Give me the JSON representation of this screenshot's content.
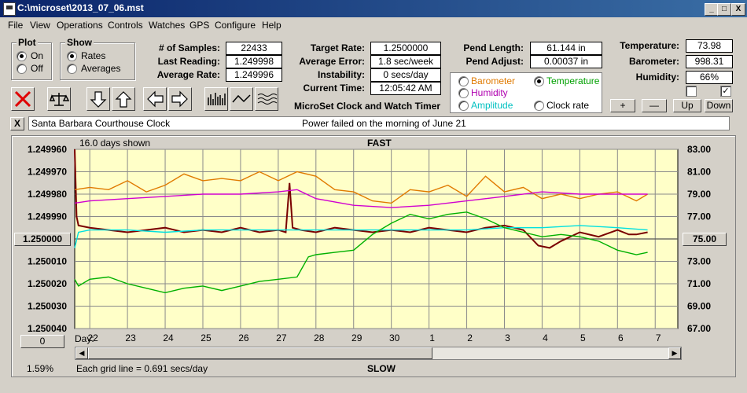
{
  "window": {
    "title": "C:\\microset\\2013_07_06.mst",
    "min": "_",
    "max": "□",
    "close": "X"
  },
  "menu": [
    "File",
    "View",
    "Operations",
    "Controls",
    "Watches",
    "GPS",
    "Configure",
    "Help"
  ],
  "plot_group": {
    "title": "Plot",
    "on": "On",
    "off": "Off",
    "selected": "On"
  },
  "show_group": {
    "title": "Show",
    "rates": "Rates",
    "averages": "Averages",
    "selected": "Rates"
  },
  "stats": {
    "samples_label": "# of Samples:",
    "samples": "22433",
    "last_reading_label": "Last Reading:",
    "last_reading": "1.249998",
    "average_rate_label": "Average Rate:",
    "average_rate": "1.249996",
    "target_rate_label": "Target Rate:",
    "target_rate": "1.2500000",
    "average_error_label": "Average Error:",
    "average_error": "1.8 sec/week",
    "instability_label": "Instability:",
    "instability": "0 secs/day",
    "current_time_label": "Current Time:",
    "current_time": "12:05:42 AM",
    "pend_length_label": "Pend Length:",
    "pend_length": "61.144 in",
    "pend_adjust_label": "Pend Adjust:",
    "pend_adjust": "0.00037 in"
  },
  "env": {
    "temperature_label": "Temperature:",
    "temperature": "73.98",
    "barometer_label": "Barometer:",
    "barometer": "998.31",
    "humidity_label": "Humidity:",
    "humidity": "66%",
    "check1": "",
    "check2": "✓"
  },
  "series_select": {
    "barometer": "Barometer",
    "temperature": "Temperature",
    "humidity": "Humidity",
    "amplitude": "Amplitude",
    "clock_rate": "Clock rate",
    "selected": "Temperature",
    "colors": {
      "barometer": "#e07a00",
      "temperature": "#00a000",
      "humidity": "#b000b0",
      "amplitude": "#00c0c0",
      "clock_rate": "#000000"
    }
  },
  "scale_buttons": {
    "plus": "+",
    "minus": "—",
    "up": "Up",
    "down": "Down"
  },
  "app_caption": "MicroSet Clock and Watch Timer",
  "clock_name": "Santa Barbara Courthouse Clock",
  "note": "Power failed on the morning of June 21",
  "close_note": "X",
  "chart_header": {
    "days_shown": "16.0 days shown",
    "fast": "FAST",
    "slow": "SLOW",
    "grid_note": "Each grid line = 0.691 secs/day",
    "percent": "1.59%",
    "day_label": "Day:",
    "left_center_button": "1.250000",
    "right_center_button": "75.00",
    "bottom_left_button": "0"
  },
  "chart_data": {
    "type": "line",
    "x_categories": [
      "22",
      "23",
      "24",
      "25",
      "26",
      "27",
      "28",
      "29",
      "30",
      "1",
      "2",
      "3",
      "4",
      "5",
      "6",
      "7"
    ],
    "y_left_ticks": [
      "1.249960",
      "1.249970",
      "1.249980",
      "1.249990",
      "1.250000",
      "1.250010",
      "1.250020",
      "1.250030",
      "1.250040"
    ],
    "y_right_ticks": [
      "83.00",
      "81.00",
      "79.00",
      "77.00",
      "75.00",
      "73.00",
      "71.00",
      "69.00",
      "67.00"
    ],
    "y_left_range": [
      1.24996,
      1.25004
    ],
    "y_right_range": [
      67,
      83
    ],
    "grid": true,
    "background": "#ffffc8",
    "series": [
      {
        "key": "clock_rate",
        "color": "#7a0000",
        "axis": "left",
        "values": [
          [
            21.6,
            1.24996
          ],
          [
            21.65,
            1.24999
          ],
          [
            21.7,
            1.249994
          ],
          [
            22,
            1.249995
          ],
          [
            22.5,
            1.249996
          ],
          [
            23,
            1.249997
          ],
          [
            23.5,
            1.249996
          ],
          [
            24,
            1.249995
          ],
          [
            24.5,
            1.249997
          ],
          [
            25,
            1.249996
          ],
          [
            25.5,
            1.249997
          ],
          [
            26,
            1.249995
          ],
          [
            26.5,
            1.249997
          ],
          [
            27,
            1.249996
          ],
          [
            27.2,
            1.249997
          ],
          [
            27.3,
            1.249975
          ],
          [
            27.38,
            1.249995
          ],
          [
            27.6,
            1.249996
          ],
          [
            28,
            1.249997
          ],
          [
            28.5,
            1.249995
          ],
          [
            29,
            1.249996
          ],
          [
            29.5,
            1.249997
          ],
          [
            30,
            1.249996
          ],
          [
            30.5,
            1.249997
          ],
          [
            31,
            1.249995
          ],
          [
            31.5,
            1.249996
          ],
          [
            32,
            1.249997
          ],
          [
            32.5,
            1.249995
          ],
          [
            33,
            1.249994
          ],
          [
            33.5,
            1.249996
          ],
          [
            33.9,
            1.250003
          ],
          [
            34.2,
            1.250004
          ],
          [
            34.5,
            1.250001
          ],
          [
            35,
            1.249997
          ],
          [
            35.5,
            1.249999
          ],
          [
            36,
            1.249996
          ],
          [
            36.3,
            1.249998
          ],
          [
            36.5,
            1.249998
          ],
          [
            36.8,
            1.249997
          ]
        ]
      },
      {
        "key": "barometer",
        "color": "#e07a00",
        "axis": "left",
        "values": [
          [
            21.6,
            1.249978
          ],
          [
            22,
            1.249977
          ],
          [
            22.5,
            1.249978
          ],
          [
            23,
            1.249974
          ],
          [
            23.5,
            1.249979
          ],
          [
            24,
            1.249976
          ],
          [
            24.5,
            1.249971
          ],
          [
            25,
            1.249974
          ],
          [
            25.5,
            1.249973
          ],
          [
            26,
            1.249974
          ],
          [
            26.5,
            1.24997
          ],
          [
            27,
            1.249974
          ],
          [
            27.5,
            1.24997
          ],
          [
            28,
            1.249972
          ],
          [
            28.5,
            1.249978
          ],
          [
            29,
            1.249979
          ],
          [
            29.5,
            1.249983
          ],
          [
            30,
            1.249984
          ],
          [
            30.5,
            1.249978
          ],
          [
            31,
            1.249979
          ],
          [
            31.5,
            1.249976
          ],
          [
            32,
            1.249981
          ],
          [
            32.5,
            1.249972
          ],
          [
            33,
            1.249979
          ],
          [
            33.5,
            1.249977
          ],
          [
            34,
            1.249982
          ],
          [
            34.5,
            1.24998
          ],
          [
            35,
            1.249982
          ],
          [
            35.5,
            1.24998
          ],
          [
            36,
            1.249979
          ],
          [
            36.5,
            1.249983
          ],
          [
            36.8,
            1.24998
          ]
        ]
      },
      {
        "key": "humidity",
        "color": "#d000d0",
        "axis": "left",
        "values": [
          [
            21.6,
            1.249984
          ],
          [
            22,
            1.249983
          ],
          [
            23,
            1.249982
          ],
          [
            24,
            1.249981
          ],
          [
            25,
            1.24998
          ],
          [
            26,
            1.24998
          ],
          [
            27,
            1.249979
          ],
          [
            27.5,
            1.249978
          ],
          [
            28,
            1.249982
          ],
          [
            29,
            1.249985
          ],
          [
            30,
            1.249986
          ],
          [
            31,
            1.249985
          ],
          [
            32,
            1.249983
          ],
          [
            33,
            1.249981
          ],
          [
            34,
            1.249979
          ],
          [
            35,
            1.24998
          ],
          [
            36,
            1.24998
          ],
          [
            36.8,
            1.24998
          ]
        ]
      },
      {
        "key": "amplitude",
        "color": "#00e0e0",
        "axis": "left",
        "values": [
          [
            21.6,
            1.250004
          ],
          [
            21.7,
            1.249997
          ],
          [
            22,
            1.249996
          ],
          [
            23,
            1.249996
          ],
          [
            24,
            1.249997
          ],
          [
            25,
            1.249996
          ],
          [
            26,
            1.249996
          ],
          [
            27,
            1.249996
          ],
          [
            28,
            1.249996
          ],
          [
            29,
            1.249996
          ],
          [
            30,
            1.249996
          ],
          [
            31,
            1.249996
          ],
          [
            32,
            1.249996
          ],
          [
            33,
            1.249995
          ],
          [
            34,
            1.249995
          ],
          [
            35,
            1.249994
          ],
          [
            36,
            1.249995
          ],
          [
            36.8,
            1.249996
          ]
        ]
      },
      {
        "key": "temperature",
        "color": "#00b000",
        "axis": "left",
        "values": [
          [
            21.6,
            1.250018
          ],
          [
            21.7,
            1.250021
          ],
          [
            22,
            1.250018
          ],
          [
            22.5,
            1.250017
          ],
          [
            23,
            1.25002
          ],
          [
            23.5,
            1.250022
          ],
          [
            24,
            1.250024
          ],
          [
            24.5,
            1.250022
          ],
          [
            25,
            1.250021
          ],
          [
            25.5,
            1.250023
          ],
          [
            26,
            1.250021
          ],
          [
            26.5,
            1.250019
          ],
          [
            27,
            1.250018
          ],
          [
            27.5,
            1.250017
          ],
          [
            27.8,
            1.250008
          ],
          [
            28,
            1.250007
          ],
          [
            28.5,
            1.250006
          ],
          [
            29,
            1.250005
          ],
          [
            29.5,
            1.249998
          ],
          [
            30,
            1.249993
          ],
          [
            30.5,
            1.249989
          ],
          [
            31,
            1.249991
          ],
          [
            31.5,
            1.249989
          ],
          [
            32,
            1.249988
          ],
          [
            32.5,
            1.249991
          ],
          [
            33,
            1.249995
          ],
          [
            33.5,
            1.249997
          ],
          [
            34,
            1.249999
          ],
          [
            34.5,
            1.249998
          ],
          [
            35,
            1.249999
          ],
          [
            35.5,
            1.250001
          ],
          [
            36,
            1.250005
          ],
          [
            36.5,
            1.250007
          ],
          [
            36.8,
            1.250006
          ]
        ]
      }
    ]
  }
}
